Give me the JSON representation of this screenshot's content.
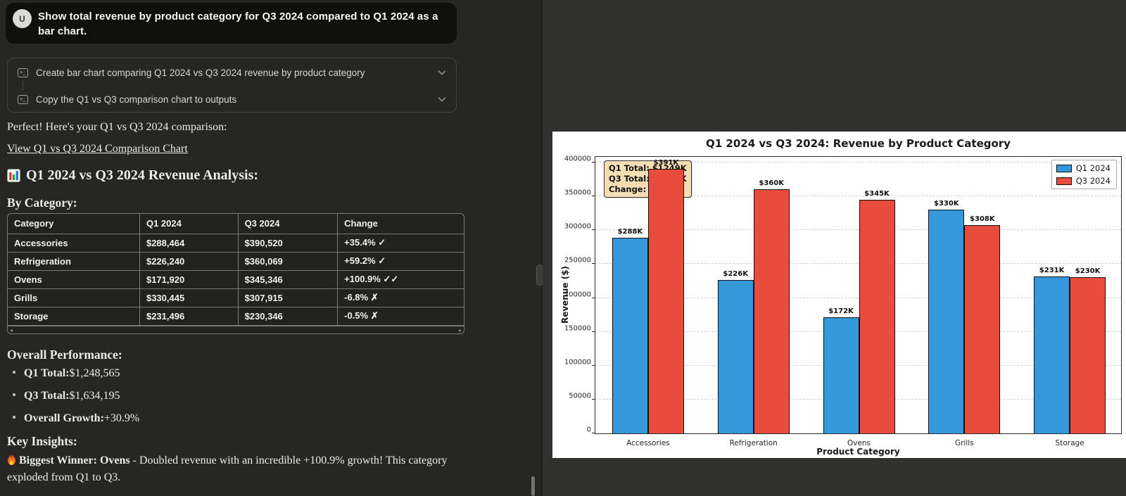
{
  "colors": {
    "left_bg": "#262624",
    "right_bg": "#30302e",
    "bubble_bg": "#0f0f0e",
    "q1_color": "#3498db",
    "q3_color": "#e74c3c",
    "annotation_bg": "#f5deb3"
  },
  "chat": {
    "avatar": "U",
    "user_message": "Show total revenue by product category for Q3 2024 compared to Q1 2024 as a bar chart.",
    "tasks": [
      {
        "label": "Create bar chart comparing Q1 2024 vs Q3 2024 revenue by product category"
      },
      {
        "label": "Copy the Q1 vs Q3 comparison chart to outputs"
      }
    ],
    "intro": "Perfect! Here's your Q1 vs Q3 2024 comparison:",
    "link": "View Q1 vs Q3 2024 Comparison Chart",
    "analysis_heading": "Q1 2024 vs Q3 2024 Revenue Analysis:",
    "by_category_heading": "By Category:",
    "table": {
      "headers": [
        "Category",
        "Q1 2024",
        "Q3 2024",
        "Change"
      ],
      "rows": [
        [
          "Accessories",
          "$288,464",
          "$390,520",
          "+35.4% ✓"
        ],
        [
          "Refrigeration",
          "$226,240",
          "$360,069",
          "+59.2% ✓"
        ],
        [
          "Ovens",
          "$171,920",
          "$345,346",
          "+100.9% ✓✓"
        ],
        [
          "Grills",
          "$330,445",
          "$307,915",
          "-6.8% ✗"
        ],
        [
          "Storage",
          "$231,496",
          "$230,346",
          "-0.5% ✗"
        ]
      ]
    },
    "overall_heading": "Overall Performance:",
    "overall_items": [
      {
        "label": "Q1 Total:",
        "value": " $1,248,565"
      },
      {
        "label": "Q3 Total:",
        "value": " $1,634,195"
      },
      {
        "label": "Overall Growth:",
        "value": " +30.9%"
      }
    ],
    "insights_heading": "Key Insights:",
    "insight_bold": "Biggest Winner: Ovens",
    "insight_rest": " - Doubled revenue with an incredible +100.9% growth! This category exploded from Q1 to Q3."
  },
  "chart_data": {
    "type": "bar",
    "title": "Q1 2024 vs Q3 2024: Revenue by Product Category",
    "xlabel": "Product Category",
    "ylabel": "Revenue ($)",
    "categories": [
      "Accessories",
      "Refrigeration",
      "Ovens",
      "Grills",
      "Storage"
    ],
    "series": [
      {
        "name": "Q1 2024",
        "color": "#3498db",
        "values": [
          288464,
          226240,
          171920,
          330445,
          231496
        ],
        "labels": [
          "$288K",
          "$226K",
          "$172K",
          "$330K",
          "$231K"
        ]
      },
      {
        "name": "Q3 2024",
        "color": "#e74c3c",
        "values": [
          390520,
          360069,
          345346,
          307915,
          230346
        ],
        "labels": [
          "$391K",
          "$360K",
          "$345K",
          "$308K",
          "$230K"
        ]
      }
    ],
    "ylim": [
      0,
      410400
    ],
    "yticks": [
      0,
      50000,
      100000,
      150000,
      200000,
      250000,
      300000,
      350000,
      400000
    ],
    "grid": "dashed horizontal",
    "legend_position": "upper right",
    "annotation": {
      "lines": [
        "Q1 Total: $1249K",
        "Q3 Total: $1634K",
        "Change: +30.9%"
      ]
    }
  }
}
